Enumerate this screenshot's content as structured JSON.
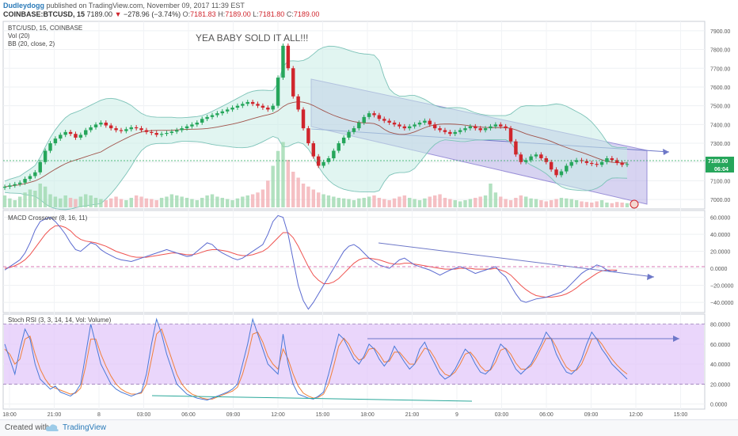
{
  "header": {
    "author": "Dudleydogg",
    "published": "published on TradingView.com, November 09, 2017 11:39 EST",
    "symbol": "COINBASE:BTCUSD, 15",
    "last": "7189.00",
    "change_arrow": "▼",
    "change": "−278.96 (−3.74%)",
    "o_label": "O:",
    "o": "7181.83",
    "h_label": "H:",
    "h": "7189.00",
    "l_label": "L:",
    "l": "7181.80",
    "c_label": "C:",
    "c": "7189.00"
  },
  "footer": {
    "created_with": "Created with",
    "brand": "TradingView"
  },
  "colors": {
    "up": "#26a69a",
    "up_fill": "#26a65b",
    "down": "#d0262d",
    "macd": "#5b6ad0",
    "signal": "#ef5350",
    "channel": "#b0a8e0",
    "rsi_band": "#e3c8fa",
    "bb": "#7dc3b8"
  },
  "chart_data": [
    {
      "type": "candlestick",
      "labels": [
        "BTC/USD, 15, COINBASE",
        "Vol (20)",
        "BB (20, close, 2)"
      ],
      "annotation": "YEA BABY SOLD IT ALL!!!",
      "price_label": "7189.00",
      "countdown_label": "06:04",
      "y_ticks": [
        "7900.00",
        "7800.00",
        "7700.00",
        "7600.00",
        "7500.00",
        "7400.00",
        "7300.00",
        "7200.00",
        "7100.00",
        "7000.00"
      ],
      "ylim": [
        6950,
        7950
      ],
      "x_ticks": [
        "18:00",
        "21:00",
        "8",
        "03:00",
        "06:00",
        "09:00",
        "12:00",
        "15:00",
        "18:00",
        "21:00",
        "9",
        "03:00",
        "06:00",
        "09:00",
        "12:00",
        "15:00"
      ],
      "close": [
        7068,
        7075,
        7082,
        7090,
        7110,
        7125,
        7145,
        7200,
        7260,
        7300,
        7325,
        7345,
        7360,
        7350,
        7330,
        7345,
        7370,
        7385,
        7400,
        7410,
        7395,
        7380,
        7370,
        7365,
        7375,
        7385,
        7380,
        7370,
        7360,
        7355,
        7345,
        7350,
        7355,
        7362,
        7370,
        7380,
        7390,
        7400,
        7410,
        7430,
        7440,
        7450,
        7460,
        7470,
        7480,
        7490,
        7500,
        7510,
        7520,
        7510,
        7500,
        7490,
        7480,
        7500,
        7650,
        7820,
        7700,
        7550,
        7480,
        7380,
        7300,
        7230,
        7180,
        7200,
        7220,
        7260,
        7300,
        7330,
        7360,
        7380,
        7410,
        7440,
        7460,
        7450,
        7430,
        7420,
        7410,
        7400,
        7390,
        7380,
        7390,
        7400,
        7410,
        7420,
        7400,
        7380,
        7370,
        7360,
        7350,
        7360,
        7370,
        7380,
        7390,
        7380,
        7370,
        7380,
        7390,
        7400,
        7390,
        7380,
        7310,
        7240,
        7200,
        7210,
        7230,
        7240,
        7220,
        7200,
        7160,
        7130,
        7150,
        7180,
        7200,
        7210,
        7205,
        7195,
        7190,
        7185,
        7200,
        7220,
        7210,
        7195,
        7185,
        7189
      ],
      "volume": [
        20,
        15,
        12,
        18,
        25,
        30,
        28,
        40,
        35,
        22,
        18,
        15,
        20,
        16,
        14,
        18,
        22,
        20,
        16,
        14,
        12,
        15,
        18,
        14,
        12,
        16,
        20,
        18,
        15,
        14,
        12,
        16,
        18,
        22,
        20,
        18,
        16,
        14,
        12,
        16,
        20,
        22,
        18,
        16,
        14,
        12,
        15,
        18,
        20,
        22,
        25,
        30,
        45,
        70,
        95,
        110,
        80,
        60,
        50,
        40,
        35,
        30,
        25,
        22,
        20,
        18,
        16,
        15,
        14,
        12,
        15,
        16,
        18,
        20,
        16,
        14,
        12,
        15,
        18,
        20,
        16,
        14,
        12,
        15,
        18,
        20,
        22,
        16,
        14,
        12,
        10,
        12,
        14,
        16,
        18,
        20,
        40,
        25,
        18,
        14,
        12,
        16,
        20,
        18,
        15,
        14,
        12,
        10,
        12,
        14,
        16,
        15,
        14,
        12,
        10,
        9,
        8,
        10,
        12,
        8,
        7,
        9,
        8,
        7
      ]
    },
    {
      "type": "line",
      "label": "MACD Crossover (8, 16, 11)",
      "y_ticks": [
        "60.0000",
        "40.0000",
        "20.0000",
        "0.0000",
        "−20.0000",
        "−40.0000"
      ],
      "ylim": [
        -52,
        68
      ],
      "series": [
        {
          "values": [
            -2,
            2,
            6,
            10,
            18,
            30,
            45,
            55,
            58,
            60,
            55,
            48,
            40,
            30,
            22,
            20,
            25,
            30,
            28,
            22,
            18,
            15,
            12,
            10,
            9,
            8,
            10,
            12,
            14,
            16,
            18,
            20,
            22,
            20,
            18,
            16,
            14,
            15,
            20,
            25,
            30,
            28,
            22,
            18,
            15,
            12,
            10,
            12,
            16,
            20,
            24,
            28,
            40,
            55,
            62,
            60,
            40,
            10,
            -20,
            -38,
            -48,
            -40,
            -30,
            -20,
            -10,
            0,
            10,
            20,
            26,
            28,
            24,
            18,
            12,
            8,
            4,
            2,
            0,
            5,
            10,
            12,
            8,
            4,
            2,
            0,
            -2,
            -5,
            -8,
            -5,
            -2,
            0,
            2,
            0,
            -3,
            -6,
            -4,
            -2,
            0,
            2,
            -5,
            -10,
            -20,
            -30,
            -38,
            -40,
            -38,
            -36,
            -35,
            -34,
            -32,
            -30,
            -28,
            -24,
            -18,
            -12,
            -6,
            -2,
            0,
            4,
            2,
            -2,
            -4,
            -3
          ]
        },
        {
          "values": [
            0,
            1,
            3,
            6,
            10,
            16,
            24,
            32,
            40,
            46,
            50,
            50,
            48,
            44,
            38,
            34,
            32,
            31,
            30,
            28,
            26,
            23,
            20,
            18,
            16,
            14,
            13,
            13,
            13,
            14,
            15,
            16,
            17,
            18,
            18,
            17,
            16,
            16,
            17,
            19,
            21,
            22,
            22,
            21,
            20,
            18,
            16,
            15,
            15,
            16,
            18,
            20,
            24,
            30,
            36,
            42,
            42,
            36,
            26,
            14,
            2,
            -8,
            -14,
            -18,
            -18,
            -16,
            -12,
            -6,
            0,
            6,
            10,
            12,
            12,
            11,
            10,
            8,
            6,
            5,
            5,
            6,
            6,
            5,
            4,
            3,
            2,
            1,
            0,
            -1,
            -1,
            -1,
            0,
            0,
            0,
            -1,
            -1,
            -1,
            -1,
            0,
            -2,
            -4,
            -8,
            -14,
            -20,
            -25,
            -29,
            -32,
            -33,
            -34,
            -34,
            -33,
            -32,
            -30,
            -27,
            -23,
            -18,
            -14,
            -10,
            -6,
            -3,
            -2,
            -2,
            -2
          ]
        }
      ]
    },
    {
      "type": "line",
      "label": "Stoch RSI (3, 3, 14, 14, Vol: Volume)",
      "y_ticks": [
        "80.0000",
        "60.0000",
        "40.0000",
        "20.0000",
        "0.0000"
      ],
      "ylim": [
        -5,
        90
      ],
      "band": [
        20,
        80
      ],
      "series": [
        {
          "values": [
            60,
            45,
            30,
            55,
            75,
            65,
            40,
            25,
            20,
            15,
            18,
            12,
            10,
            8,
            12,
            20,
            50,
            80,
            60,
            40,
            30,
            20,
            15,
            12,
            10,
            8,
            10,
            12,
            30,
            60,
            85,
            70,
            50,
            35,
            20,
            15,
            10,
            8,
            6,
            5,
            4,
            6,
            8,
            10,
            12,
            15,
            20,
            40,
            60,
            85,
            70,
            55,
            40,
            35,
            30,
            70,
            40,
            20,
            10,
            8,
            6,
            5,
            8,
            12,
            30,
            50,
            70,
            65,
            55,
            45,
            40,
            48,
            60,
            55,
            45,
            38,
            45,
            58,
            50,
            42,
            35,
            40,
            55,
            62,
            50,
            40,
            30,
            25,
            28,
            35,
            45,
            55,
            50,
            40,
            32,
            30,
            35,
            48,
            60,
            55,
            45,
            35,
            30,
            35,
            40,
            50,
            60,
            72,
            65,
            50,
            40,
            32,
            30,
            35,
            45,
            60,
            72,
            65,
            55,
            48,
            40,
            35,
            30,
            25
          ]
        },
        {
          "values": [
            55,
            50,
            40,
            45,
            65,
            68,
            50,
            35,
            25,
            18,
            16,
            14,
            12,
            10,
            11,
            16,
            38,
            65,
            65,
            50,
            38,
            28,
            20,
            15,
            12,
            10,
            10,
            11,
            20,
            45,
            70,
            75,
            60,
            45,
            30,
            20,
            14,
            10,
            8,
            6,
            5,
            5,
            7,
            9,
            11,
            13,
            17,
            30,
            48,
            70,
            72,
            62,
            48,
            40,
            35,
            55,
            45,
            30,
            18,
            11,
            8,
            6,
            7,
            10,
            20,
            38,
            58,
            66,
            60,
            50,
            44,
            46,
            55,
            56,
            50,
            42,
            43,
            52,
            52,
            46,
            40,
            40,
            48,
            56,
            54,
            46,
            36,
            30,
            28,
            32,
            40,
            50,
            52,
            46,
            38,
            33,
            34,
            42,
            54,
            56,
            50,
            41,
            35,
            35,
            38,
            46,
            56,
            66,
            66,
            57,
            46,
            37,
            33,
            34,
            40,
            52,
            65,
            66,
            60,
            52,
            45,
            39,
            34,
            30
          ]
        }
      ]
    }
  ]
}
